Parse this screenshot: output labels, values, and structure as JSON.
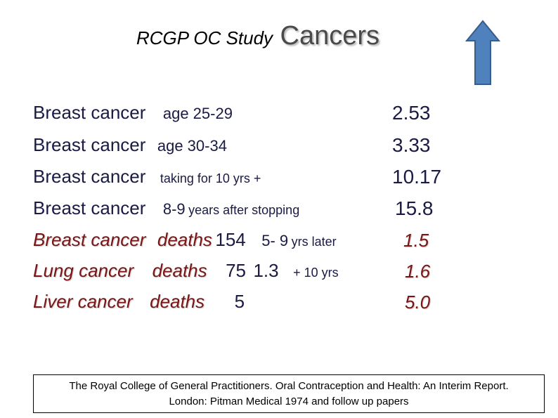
{
  "title": {
    "main": "RCGP OC Study",
    "sub": "Cancers"
  },
  "rows": [
    {
      "label": "Breast cancer",
      "detail": "age 25-29",
      "extra": "",
      "value": "2.53"
    },
    {
      "label": "Breast  cancer",
      "detail": "age 30-34",
      "extra": "",
      "value": "3.33"
    },
    {
      "label": "Breast cancer",
      "detail": "taking for 10 yrs +",
      "extra": "",
      "value": "10.17"
    },
    {
      "label": "Breast cancer",
      "detail_num": "8-9",
      "detail": "years after stopping",
      "value": "15.8"
    },
    {
      "label": "Breast cancer",
      "deaths": "deaths",
      "count": "154",
      "detail_num": "5- 9",
      "detail": "yrs later",
      "value": "1.5"
    },
    {
      "label": "Lung cancer",
      "deaths": "deaths",
      "count": "75",
      "ratio": "1.3",
      "detail": "+ 10 yrs",
      "value": "1.6"
    },
    {
      "label": "Liver cancer",
      "deaths": "deaths",
      "count": "5",
      "value": "5.0"
    }
  ],
  "reference": {
    "line1": "The Royal College of General Practitioners. Oral Contraception and Health: An Interim Report.",
    "line2": "London: Pitman Medical 1974 and follow up papers"
  },
  "colors": {
    "arrow_fill": "#4f81bd",
    "arrow_stroke": "#385d8a",
    "deaths_text": "#7a1515"
  },
  "icons": {
    "arrow": "up-arrow-icon"
  }
}
